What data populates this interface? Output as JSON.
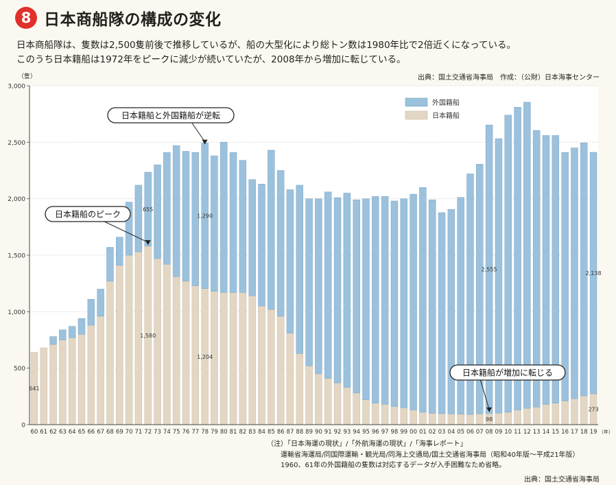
{
  "header": {
    "badge": "8",
    "title": "日本商船隊の構成の変化",
    "desc1": "日本商船隊は、隻数は2,500隻前後で推移しているが、船の大型化により総トン数は1980年比で2倍近くになっている。",
    "desc2": "このうち日本籍船は1972年をピークに減少が続いていたが、2008年から増加に転じている。",
    "source_top": "出典：国土交通省海事局　作成：（公財）日本海事センター"
  },
  "colors": {
    "foreign": "#9bc1dc",
    "foreign_stroke": "#7fa8c6",
    "japan": "#e3d7c4",
    "japan_stroke": "#c9bba4"
  },
  "chart_data": {
    "type": "bar",
    "stacked": true,
    "ylabel": "（隻）",
    "xunit": "（年）",
    "ylim": [
      0,
      3000
    ],
    "yticks": [
      0,
      500,
      1000,
      1500,
      2000,
      2500,
      3000
    ],
    "ytick_labels": [
      "0",
      "500",
      "1,000",
      "1,500",
      "2,000",
      "2,500",
      "3,000"
    ],
    "categories": [
      "60",
      "61",
      "62",
      "63",
      "64",
      "65",
      "66",
      "67",
      "68",
      "69",
      "70",
      "71",
      "72",
      "73",
      "74",
      "75",
      "76",
      "77",
      "78",
      "79",
      "80",
      "81",
      "82",
      "83",
      "84",
      "85",
      "86",
      "87",
      "88",
      "89",
      "90",
      "91",
      "92",
      "93",
      "94",
      "95",
      "96",
      "97",
      "98",
      "99",
      "00",
      "01",
      "02",
      "03",
      "04",
      "05",
      "06",
      "07",
      "08",
      "09",
      "10",
      "11",
      "12",
      "13",
      "14",
      "15",
      "16",
      "17",
      "18",
      "19"
    ],
    "legend_position": "top-center",
    "series": [
      {
        "name": "日本籍船",
        "key": "japan",
        "values": [
          641,
          680,
          710,
          750,
          770,
          800,
          880,
          960,
          1270,
          1410,
          1500,
          1530,
          1580,
          1470,
          1420,
          1310,
          1270,
          1230,
          1204,
          1180,
          1170,
          1170,
          1170,
          1140,
          1050,
          1020,
          960,
          810,
          630,
          520,
          450,
          410,
          370,
          330,
          280,
          220,
          190,
          180,
          160,
          150,
          130,
          110,
          100,
          97,
          95,
          92,
          90,
          96,
          98,
          102,
          110,
          130,
          145,
          155,
          180,
          190,
          210,
          230,
          255,
          273
        ]
      },
      {
        "name": "外国籍船",
        "key": "foreign",
        "values": [
          0,
          0,
          70,
          90,
          100,
          140,
          230,
          240,
          300,
          250,
          470,
          590,
          655,
          830,
          990,
          1160,
          1150,
          1180,
          1290,
          1200,
          1330,
          1240,
          1170,
          1030,
          1080,
          1410,
          1290,
          1270,
          1490,
          1480,
          1550,
          1650,
          1640,
          1720,
          1710,
          1780,
          1830,
          1840,
          1820,
          1850,
          1910,
          1990,
          1890,
          1780,
          1810,
          1920,
          2130,
          2210,
          2555,
          2430,
          2630,
          2680,
          2710,
          2450,
          2380,
          2370,
          2200,
          2220,
          2240,
          2138
        ]
      }
    ],
    "data_labels": [
      {
        "series": "japan",
        "category": "60",
        "text": "641"
      },
      {
        "series": "foreign",
        "category": "72",
        "text": "655"
      },
      {
        "series": "japan",
        "category": "72",
        "text": "1,580"
      },
      {
        "series": "foreign",
        "category": "78",
        "text": "1,290"
      },
      {
        "series": "japan",
        "category": "78",
        "text": "1,204"
      },
      {
        "series": "foreign",
        "category": "08",
        "text": "2,555"
      },
      {
        "series": "japan",
        "category": "08",
        "text": "98"
      },
      {
        "series": "foreign",
        "category": "19",
        "text": "2,138"
      },
      {
        "series": "japan",
        "category": "19",
        "text": "273"
      }
    ],
    "annotations": [
      {
        "text": "日本籍船と外国籍船が逆転",
        "category": "78",
        "value": 2480
      },
      {
        "text": "日本籍船のピーク",
        "category": "72",
        "value": 1590
      },
      {
        "text": "日本籍船が増加に転じる",
        "category": "08",
        "value": 110
      }
    ]
  },
  "notes": {
    "line1": "（注）「日本海運の現状」/「外航海運の現状」/「海事レポート」",
    "line2": "運輸省海運局/同国際運輸・観光局/同海上交通局/国土交通省海事局（昭和40年版～平成21年版）",
    "line3": "1960、61年の外国籍船の隻数は対応するデータが入手困難なため省略。",
    "source_bottom": "出典：国土交通省海事局"
  }
}
